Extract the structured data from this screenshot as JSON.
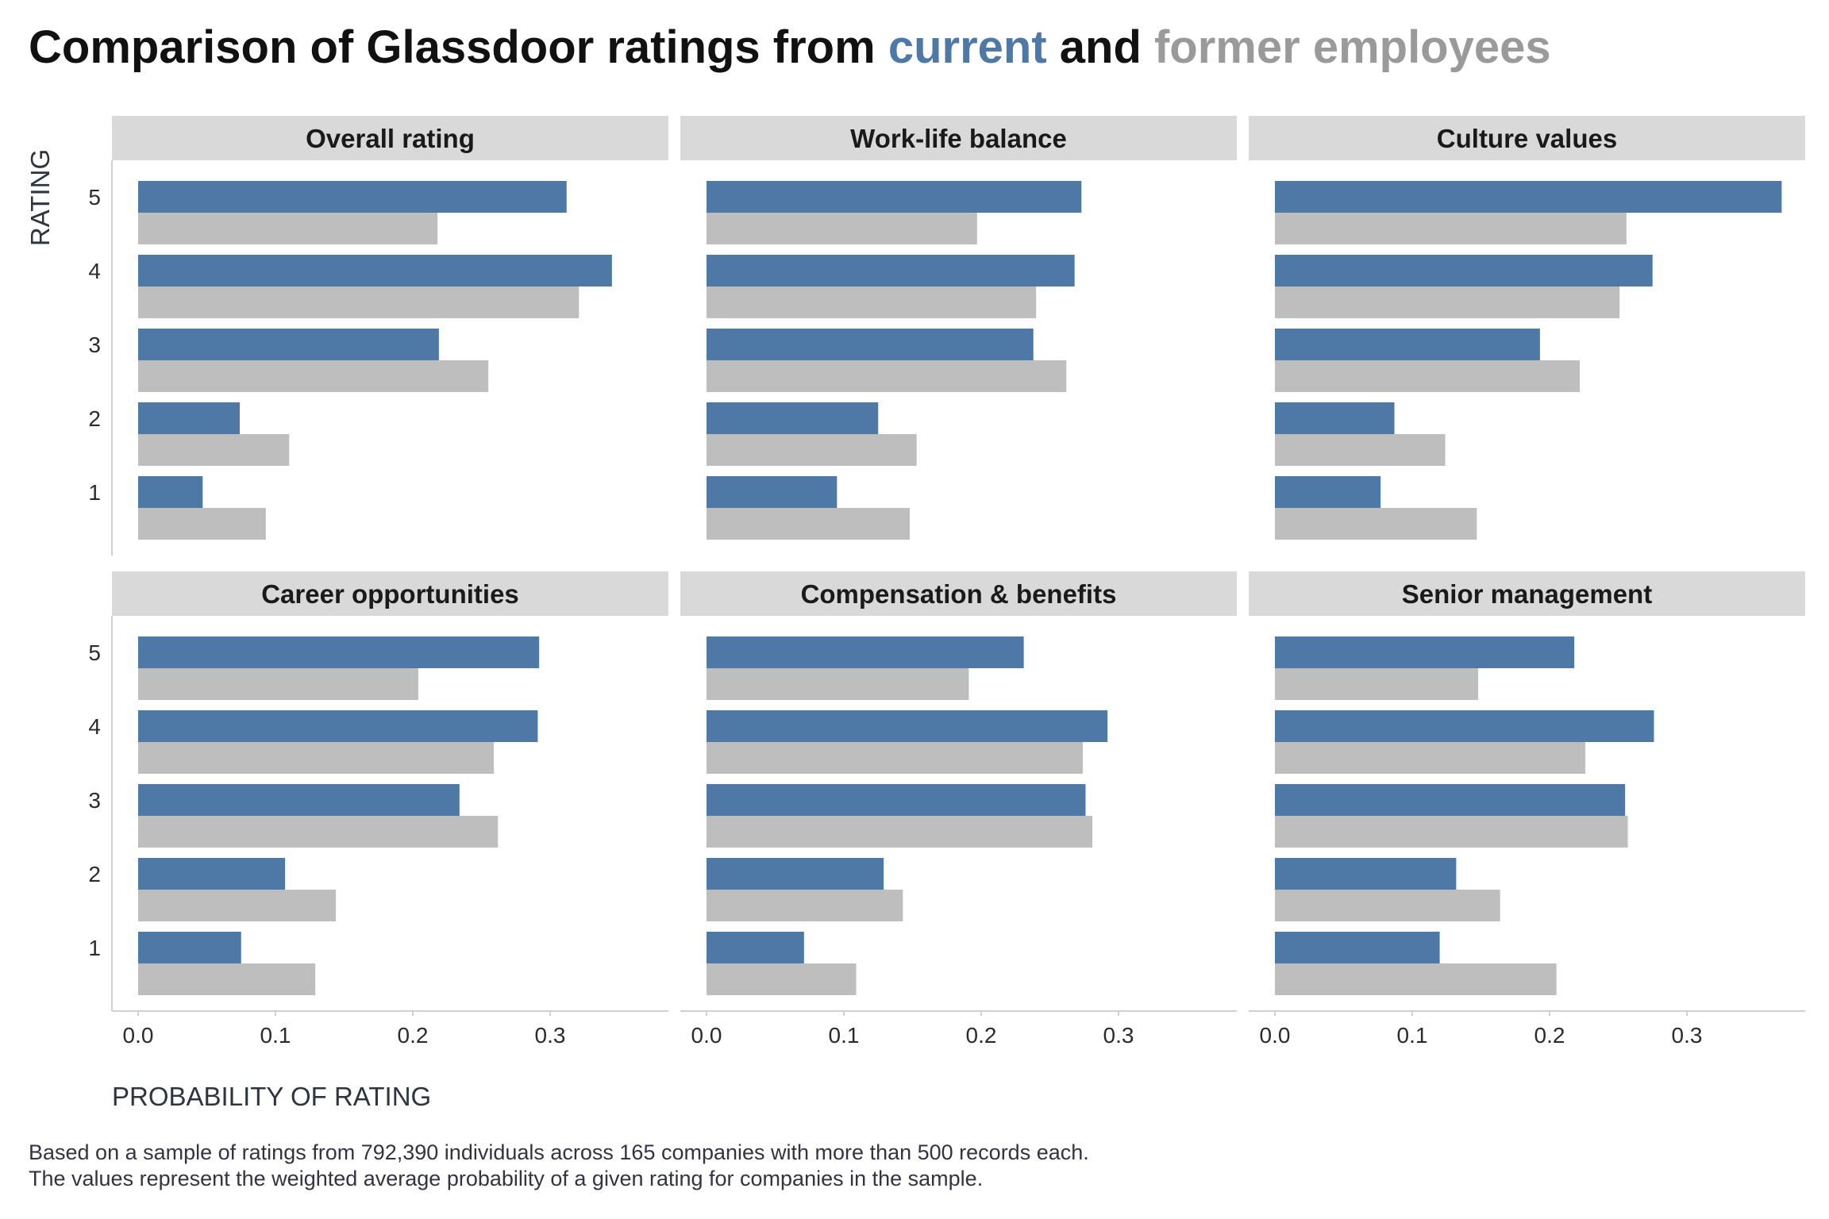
{
  "title": {
    "prefix": "Comparison of Glassdoor ratings from ",
    "current_word": "current",
    "middle": " and ",
    "former_word": "former employees"
  },
  "caption": {
    "line1": "Based on a sample of ratings from 792,390 individuals across 165 companies with more than 500 records each.",
    "line2": "The values represent the weighted average probability of a given rating for companies in the sample."
  },
  "colors": {
    "current": "#4e79a7",
    "former": "#bebebe",
    "strip": "#d9d9d9",
    "axis": "#d0d0d0"
  },
  "chart_data": {
    "type": "bar",
    "orientation": "horizontal",
    "xlabel": "PROBABILITY OF RATING",
    "ylabel": "RATING",
    "xlim": [
      0,
      0.38
    ],
    "xticks": [
      0.0,
      0.1,
      0.2,
      0.3
    ],
    "xtick_labels": [
      "0.0",
      "0.1",
      "0.2",
      "0.3"
    ],
    "categories": [
      "5",
      "4",
      "3",
      "2",
      "1"
    ],
    "grid": false,
    "legend": "none (series colours encoded in title)",
    "panels": [
      {
        "title": "Overall rating",
        "series": [
          {
            "name": "current",
            "values": [
              0.312,
              0.345,
              0.219,
              0.074,
              0.047
            ]
          },
          {
            "name": "former employees",
            "values": [
              0.218,
              0.321,
              0.255,
              0.11,
              0.093
            ]
          }
        ]
      },
      {
        "title": "Work-life balance",
        "series": [
          {
            "name": "current",
            "values": [
              0.273,
              0.268,
              0.238,
              0.125,
              0.095
            ]
          },
          {
            "name": "former employees",
            "values": [
              0.197,
              0.24,
              0.262,
              0.153,
              0.148
            ]
          }
        ]
      },
      {
        "title": "Culture values",
        "series": [
          {
            "name": "current",
            "values": [
              0.369,
              0.275,
              0.193,
              0.087,
              0.077
            ]
          },
          {
            "name": "former employees",
            "values": [
              0.256,
              0.251,
              0.222,
              0.124,
              0.147
            ]
          }
        ]
      },
      {
        "title": "Career opportunities",
        "series": [
          {
            "name": "current",
            "values": [
              0.292,
              0.291,
              0.234,
              0.107,
              0.075
            ]
          },
          {
            "name": "former employees",
            "values": [
              0.204,
              0.259,
              0.262,
              0.144,
              0.129
            ]
          }
        ]
      },
      {
        "title": "Compensation & benefits",
        "series": [
          {
            "name": "current",
            "values": [
              0.231,
              0.292,
              0.276,
              0.129,
              0.071
            ]
          },
          {
            "name": "former employees",
            "values": [
              0.191,
              0.274,
              0.281,
              0.143,
              0.109
            ]
          }
        ]
      },
      {
        "title": "Senior management",
        "series": [
          {
            "name": "current",
            "values": [
              0.218,
              0.276,
              0.255,
              0.132,
              0.12
            ]
          },
          {
            "name": "former employees",
            "values": [
              0.148,
              0.226,
              0.257,
              0.164,
              0.205
            ]
          }
        ]
      }
    ]
  }
}
